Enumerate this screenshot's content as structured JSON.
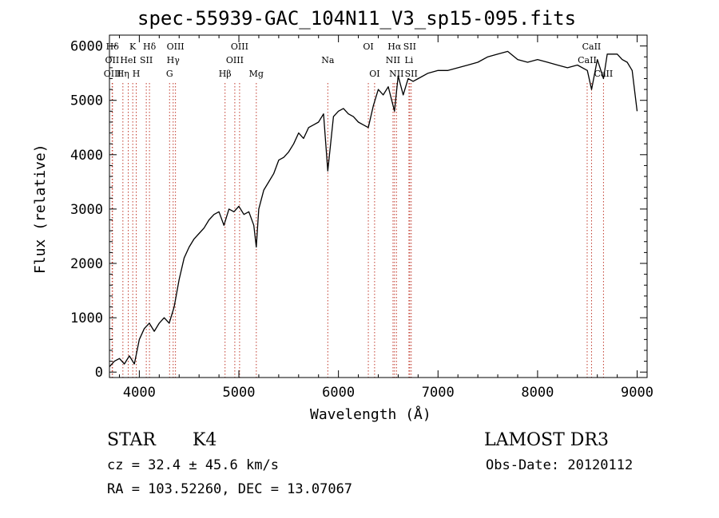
{
  "chart_data": {
    "type": "line",
    "title": "spec-55939-GAC_104N11_V3_sp15-095.fits",
    "xlabel": "Wavelength (Å)",
    "ylabel": "Flux (relative)",
    "xlim": [
      3700,
      9100
    ],
    "ylim": [
      -100,
      6200
    ],
    "xticks": [
      4000,
      5000,
      6000,
      7000,
      8000,
      9000
    ],
    "yticks": [
      0,
      1000,
      2000,
      3000,
      4000,
      5000,
      6000
    ],
    "grid": false,
    "series": [
      {
        "name": "flux",
        "x": [
          3700,
          3750,
          3800,
          3850,
          3900,
          3950,
          4000,
          4050,
          4100,
          4150,
          4200,
          4250,
          4300,
          4350,
          4400,
          4450,
          4500,
          4550,
          4600,
          4650,
          4700,
          4750,
          4800,
          4850,
          4900,
          4950,
          5000,
          5050,
          5100,
          5150,
          5175,
          5200,
          5250,
          5300,
          5350,
          5400,
          5450,
          5500,
          5550,
          5600,
          5650,
          5700,
          5750,
          5800,
          5850,
          5893,
          5950,
          6000,
          6050,
          6100,
          6150,
          6200,
          6250,
          6300,
          6350,
          6400,
          6450,
          6500,
          6563,
          6600,
          6650,
          6700,
          6750,
          6800,
          6900,
          7000,
          7100,
          7200,
          7300,
          7400,
          7500,
          7600,
          7700,
          7800,
          7900,
          8000,
          8100,
          8200,
          8300,
          8400,
          8500,
          8542,
          8600,
          8662,
          8700,
          8800,
          8850,
          8900,
          8950,
          9000
        ],
        "values": [
          100,
          200,
          250,
          150,
          300,
          150,
          600,
          800,
          900,
          750,
          900,
          1000,
          900,
          1200,
          1700,
          2100,
          2300,
          2450,
          2550,
          2650,
          2800,
          2900,
          2950,
          2700,
          3000,
          2950,
          3050,
          2900,
          2950,
          2700,
          2300,
          3000,
          3350,
          3500,
          3650,
          3900,
          3950,
          4050,
          4200,
          4400,
          4300,
          4500,
          4550,
          4600,
          4750,
          3700,
          4700,
          4800,
          4850,
          4750,
          4700,
          4600,
          4550,
          4500,
          4900,
          5200,
          5100,
          5250,
          4800,
          5450,
          5100,
          5400,
          5350,
          5400,
          5500,
          5550,
          5550,
          5600,
          5650,
          5700,
          5800,
          5850,
          5900,
          5750,
          5700,
          5750,
          5700,
          5650,
          5600,
          5650,
          5550,
          5200,
          5750,
          5400,
          5850,
          5850,
          5750,
          5700,
          5550,
          4800
        ]
      }
    ],
    "lines": [
      {
        "label": "Hδ",
        "x": 3730,
        "row": 0
      },
      {
        "label": "OII",
        "x": 3727,
        "row": 1
      },
      {
        "label": "OIII",
        "x": 3730,
        "row": 2
      },
      {
        "label": "K",
        "x": 3934,
        "row": 0
      },
      {
        "label": "HeI",
        "x": 3889,
        "row": 1
      },
      {
        "label": "Hη",
        "x": 3835,
        "row": 2
      },
      {
        "label": "SII",
        "x": 4070,
        "row": 1
      },
      {
        "label": "H",
        "x": 3969,
        "row": 2
      },
      {
        "label": "Hδ",
        "x": 4102,
        "row": 0
      },
      {
        "label": "OIII",
        "x": 4363,
        "row": 0
      },
      {
        "label": "Hγ",
        "x": 4340,
        "row": 1
      },
      {
        "label": "G",
        "x": 4304,
        "row": 2
      },
      {
        "label": "Hβ",
        "x": 4861,
        "row": 2
      },
      {
        "label": "OIII",
        "x": 5007,
        "row": 0
      },
      {
        "label": "OIII",
        "x": 4959,
        "row": 1
      },
      {
        "label": "Mg",
        "x": 5175,
        "row": 2
      },
      {
        "label": "Na",
        "x": 5893,
        "row": 1
      },
      {
        "label": "OI",
        "x": 6300,
        "row": 0
      },
      {
        "label": "OI",
        "x": 6363,
        "row": 2
      },
      {
        "label": "Hα",
        "x": 6563,
        "row": 0
      },
      {
        "label": "SII",
        "x": 6716,
        "row": 0
      },
      {
        "label": "NII",
        "x": 6548,
        "row": 1
      },
      {
        "label": "Li",
        "x": 6708,
        "row": 1
      },
      {
        "label": "NII",
        "x": 6583,
        "row": 2
      },
      {
        "label": "SII",
        "x": 6731,
        "row": 2
      },
      {
        "label": "CaII",
        "x": 8542,
        "row": 0
      },
      {
        "label": "CaII",
        "x": 8498,
        "row": 1
      },
      {
        "label": "CaII",
        "x": 8662,
        "row": 2
      }
    ]
  },
  "info": {
    "class_label": "STAR",
    "subclass": "K4",
    "survey": "LAMOST DR3",
    "cz": "cz = 32.4 ± 45.6 km/s",
    "obs_date": "Obs-Date: 20120112",
    "coords": "RA = 103.52260, DEC =  13.07067"
  },
  "colors": {
    "axis": "#000000",
    "line": "#000000",
    "marker": "#c0392b"
  }
}
